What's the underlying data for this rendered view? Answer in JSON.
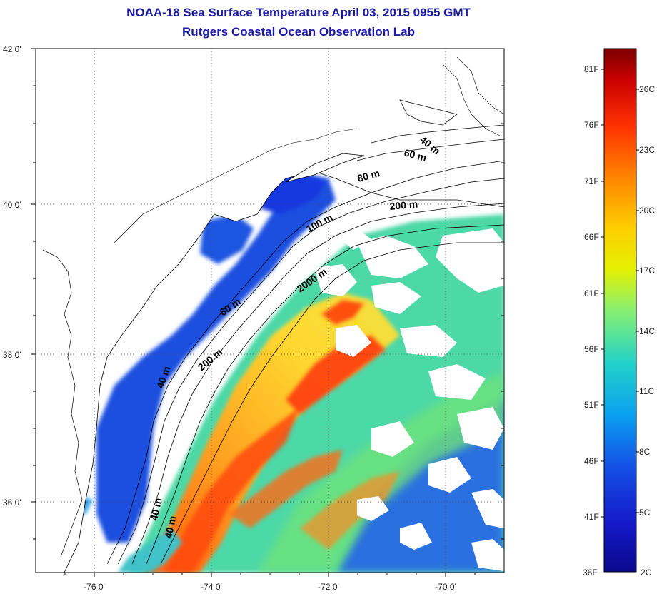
{
  "title": {
    "line1": "NOAA-18 Sea Surface Temperature April 03, 2015 0955 GMT",
    "line2": "Rutgers Coastal Ocean Observation Lab"
  },
  "map": {
    "lat_labels": [
      "42 0'",
      "40 0'",
      "38 0'",
      "36 0'"
    ],
    "lon_labels": [
      "-76 0'",
      "-74 0'",
      "-72 0'",
      "-70 0'"
    ],
    "contours": [
      {
        "label": "40 m"
      },
      {
        "label": "60 m"
      },
      {
        "label": "80 m"
      },
      {
        "label": "200 m"
      },
      {
        "label": "100 m"
      },
      {
        "label": "2000 m"
      },
      {
        "label": "60 m"
      },
      {
        "label": "200 m"
      },
      {
        "label": "40 m"
      },
      {
        "label": "40 m"
      },
      {
        "label": "40 m"
      }
    ]
  },
  "colorbar": {
    "fahrenheit": [
      "81F",
      "76F",
      "71F",
      "66F",
      "61F",
      "56F",
      "51F",
      "46F",
      "41F",
      "36F"
    ],
    "celsius": [
      "26C",
      "23C",
      "20C",
      "17C",
      "14C",
      "11C",
      "8C",
      "5C",
      "2C"
    ],
    "colors": [
      "#7a0000",
      "#cc0000",
      "#ff3300",
      "#ff8800",
      "#ffcc00",
      "#e6f000",
      "#88f070",
      "#22d2c8",
      "#0aa0f0",
      "#1450e6",
      "#1418c8",
      "#0a0a8c"
    ]
  },
  "colors": {
    "title": "#1a1aa6",
    "land": "#ffffff",
    "cloud": "#ffffff"
  }
}
